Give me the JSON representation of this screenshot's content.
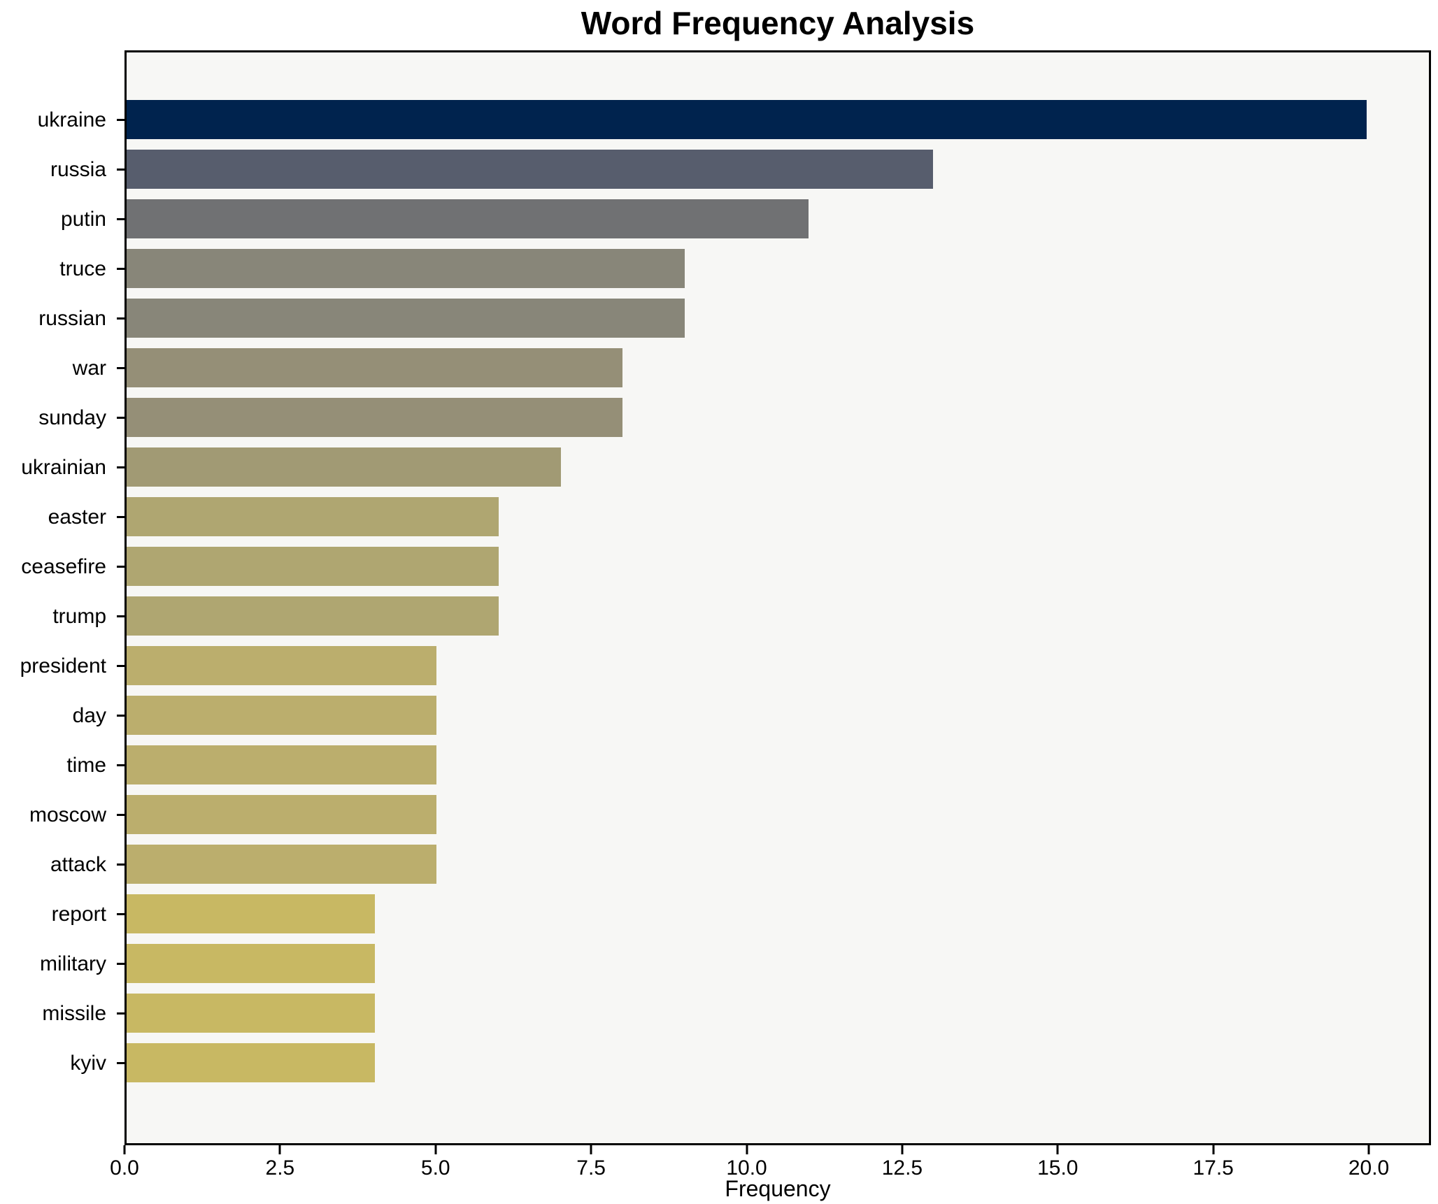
{
  "chart_data": {
    "type": "bar",
    "orientation": "horizontal",
    "title": "Word Frequency Analysis",
    "xlabel": "Frequency",
    "ylabel": "",
    "categories": [
      "ukraine",
      "russia",
      "putin",
      "truce",
      "russian",
      "war",
      "sunday",
      "ukrainian",
      "easter",
      "ceasefire",
      "trump",
      "president",
      "day",
      "time",
      "moscow",
      "attack",
      "report",
      "military",
      "missile",
      "kyiv"
    ],
    "values": [
      20,
      13,
      11,
      9,
      9,
      8,
      8,
      7,
      6,
      6,
      6,
      5,
      5,
      5,
      5,
      5,
      4,
      4,
      4,
      4
    ],
    "bar_colors": [
      "#00234e",
      "#575d6d",
      "#707173",
      "#888679",
      "#888679",
      "#958f77",
      "#958f77",
      "#a19a74",
      "#afa671",
      "#afa671",
      "#afa671",
      "#bbae6d",
      "#bbae6d",
      "#bbae6d",
      "#bbae6d",
      "#bbae6d",
      "#c8b863",
      "#c8b863",
      "#c8b863",
      "#c8b863"
    ],
    "xticks": [
      0,
      2.5,
      5,
      7.5,
      10,
      12.5,
      15,
      17.5,
      20
    ],
    "xtick_labels": [
      "0.0",
      "2.5",
      "5.0",
      "7.5",
      "10.0",
      "12.5",
      "15.0",
      "17.5",
      "20.0"
    ],
    "xlim": [
      0,
      21
    ],
    "grid": false,
    "legend": null,
    "plot_background": "#f7f7f5",
    "figure_background": "#ffffff",
    "axis_color": "#000000"
  }
}
